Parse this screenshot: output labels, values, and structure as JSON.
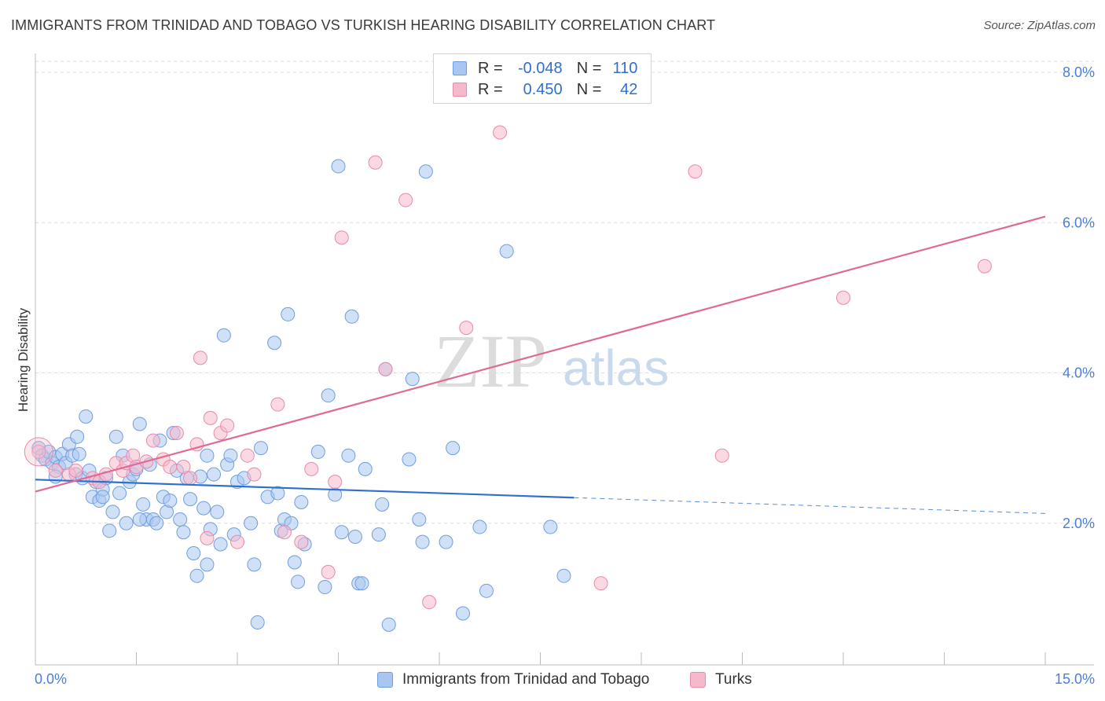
{
  "title": "IMMIGRANTS FROM TRINIDAD AND TOBAGO VS TURKISH HEARING DISABILITY CORRELATION CHART",
  "source": "Source: ZipAtlas.com",
  "watermark": {
    "zip": "ZIP",
    "atlas": "atlas"
  },
  "legend": {
    "rows": [
      {
        "r_label": "R =",
        "r_value": "-0.048",
        "n_label": "N =",
        "n_value": "110",
        "color": "#a9c6f0",
        "border": "#6f9ee0"
      },
      {
        "r_label": "R =",
        "r_value": "0.450",
        "n_label": "N =",
        "n_value": "42",
        "color": "#f6b9cc",
        "border": "#e88aa8"
      }
    ]
  },
  "bottom_legend": [
    {
      "label": "Immigrants from Trinidad and Tobago",
      "color": "#a9c6f0",
      "border": "#6f9ee0"
    },
    {
      "label": "Turks",
      "color": "#f6b9cc",
      "border": "#e88aa8"
    }
  ],
  "colors": {
    "blue": "#2f6fd0",
    "blue_fill": "#a9c6f0",
    "pink": "#e06a93",
    "pink_fill": "#f6b9cc",
    "grid": "#dcdcdc",
    "axis_text": "#4a7fd4"
  },
  "chart_data": {
    "type": "scatter",
    "title": "IMMIGRANTS FROM TRINIDAD AND TOBAGO VS TURKISH HEARING DISABILITY CORRELATION CHART",
    "xlabel": "",
    "ylabel": "Hearing Disability",
    "xlim": [
      0,
      15
    ],
    "ylim": [
      0,
      8
    ],
    "x_tick_labels": [
      "0.0%",
      "15.0%"
    ],
    "y_ticks": [
      2,
      4,
      6,
      8
    ],
    "y_tick_labels": [
      "2.0%",
      "4.0%",
      "6.0%",
      "8.0%"
    ],
    "grid": "horizontal dashed",
    "legend_position": "top-center",
    "series": [
      {
        "name": "Immigrants from Trinidad and Tobago",
        "color": "#2f6fd0",
        "trend": {
          "x": [
            0,
            8
          ],
          "y": [
            2.58,
            2.34
          ],
          "dashed_to": [
            15,
            2.13
          ]
        },
        "points": [
          [
            0.05,
            3.0
          ],
          [
            0.1,
            2.9
          ],
          [
            0.15,
            2.85
          ],
          [
            0.2,
            2.95
          ],
          [
            0.25,
            2.8
          ],
          [
            0.3,
            2.88
          ],
          [
            0.35,
            2.75
          ],
          [
            0.4,
            2.92
          ],
          [
            0.45,
            2.8
          ],
          [
            0.5,
            3.05
          ],
          [
            0.55,
            2.9
          ],
          [
            0.6,
            2.65
          ],
          [
            0.62,
            3.15
          ],
          [
            0.7,
            2.6
          ],
          [
            0.75,
            3.42
          ],
          [
            0.8,
            2.7
          ],
          [
            0.85,
            2.35
          ],
          [
            0.9,
            2.55
          ],
          [
            0.95,
            2.3
          ],
          [
            1.0,
            2.45
          ],
          [
            1.05,
            2.6
          ],
          [
            1.1,
            1.9
          ],
          [
            1.15,
            2.15
          ],
          [
            1.2,
            3.15
          ],
          [
            1.25,
            2.4
          ],
          [
            1.3,
            2.9
          ],
          [
            1.35,
            2.0
          ],
          [
            1.4,
            2.55
          ],
          [
            1.45,
            2.65
          ],
          [
            1.5,
            2.72
          ],
          [
            1.55,
            3.32
          ],
          [
            1.6,
            2.25
          ],
          [
            1.65,
            2.05
          ],
          [
            1.7,
            2.78
          ],
          [
            1.75,
            2.05
          ],
          [
            1.8,
            2.0
          ],
          [
            1.85,
            3.1
          ],
          [
            1.9,
            2.35
          ],
          [
            1.95,
            2.15
          ],
          [
            2.0,
            2.3
          ],
          [
            2.05,
            3.2
          ],
          [
            2.1,
            2.7
          ],
          [
            2.15,
            2.05
          ],
          [
            2.2,
            1.88
          ],
          [
            2.25,
            2.6
          ],
          [
            2.3,
            2.32
          ],
          [
            2.35,
            1.6
          ],
          [
            2.4,
            1.3
          ],
          [
            2.45,
            2.62
          ],
          [
            2.5,
            2.2
          ],
          [
            2.55,
            1.45
          ],
          [
            2.6,
            1.92
          ],
          [
            2.65,
            2.65
          ],
          [
            2.7,
            2.15
          ],
          [
            2.75,
            1.72
          ],
          [
            2.8,
            4.5
          ],
          [
            2.85,
            2.78
          ],
          [
            2.9,
            2.9
          ],
          [
            2.95,
            1.85
          ],
          [
            3.0,
            2.55
          ],
          [
            3.1,
            2.6
          ],
          [
            3.2,
            2.0
          ],
          [
            3.25,
            1.45
          ],
          [
            3.3,
            0.68
          ],
          [
            3.35,
            3.0
          ],
          [
            3.45,
            2.35
          ],
          [
            3.55,
            4.4
          ],
          [
            3.6,
            2.4
          ],
          [
            3.65,
            1.9
          ],
          [
            3.7,
            2.05
          ],
          [
            3.75,
            4.78
          ],
          [
            3.8,
            2.0
          ],
          [
            3.85,
            1.48
          ],
          [
            3.9,
            1.22
          ],
          [
            3.95,
            2.28
          ],
          [
            4.0,
            1.72
          ],
          [
            4.2,
            2.95
          ],
          [
            4.3,
            1.15
          ],
          [
            4.35,
            3.7
          ],
          [
            4.45,
            2.38
          ],
          [
            4.5,
            6.75
          ],
          [
            4.55,
            1.88
          ],
          [
            4.65,
            2.9
          ],
          [
            4.7,
            4.75
          ],
          [
            4.75,
            1.82
          ],
          [
            4.8,
            1.2
          ],
          [
            4.85,
            1.2
          ],
          [
            4.9,
            2.72
          ],
          [
            5.1,
            1.85
          ],
          [
            5.15,
            2.25
          ],
          [
            5.2,
            4.05
          ],
          [
            5.25,
            0.65
          ],
          [
            5.55,
            2.85
          ],
          [
            5.6,
            3.92
          ],
          [
            5.7,
            2.05
          ],
          [
            5.75,
            1.75
          ],
          [
            5.8,
            6.68
          ],
          [
            6.1,
            1.75
          ],
          [
            6.2,
            3.0
          ],
          [
            6.35,
            0.8
          ],
          [
            6.6,
            1.95
          ],
          [
            6.7,
            1.1
          ],
          [
            7.0,
            5.62
          ],
          [
            7.65,
            1.95
          ],
          [
            7.85,
            1.3
          ],
          [
            0.3,
            2.62
          ],
          [
            0.65,
            2.92
          ],
          [
            1.0,
            2.35
          ],
          [
            1.55,
            2.05
          ],
          [
            2.55,
            2.9
          ]
        ]
      },
      {
        "name": "Turks",
        "color": "#e06a93",
        "trend": {
          "x": [
            0,
            15
          ],
          "y": [
            2.42,
            6.08
          ]
        },
        "points": [
          [
            0.05,
            2.95
          ],
          [
            0.3,
            2.7
          ],
          [
            0.5,
            2.65
          ],
          [
            0.6,
            2.7
          ],
          [
            0.85,
            2.6
          ],
          [
            0.95,
            2.55
          ],
          [
            1.05,
            2.65
          ],
          [
            1.2,
            2.8
          ],
          [
            1.3,
            2.7
          ],
          [
            1.35,
            2.8
          ],
          [
            1.45,
            2.9
          ],
          [
            1.5,
            2.75
          ],
          [
            1.65,
            2.82
          ],
          [
            1.75,
            3.1
          ],
          [
            1.9,
            2.85
          ],
          [
            2.0,
            2.75
          ],
          [
            2.1,
            3.2
          ],
          [
            2.2,
            2.75
          ],
          [
            2.3,
            2.6
          ],
          [
            2.4,
            3.05
          ],
          [
            2.45,
            4.2
          ],
          [
            2.55,
            1.8
          ],
          [
            2.6,
            3.4
          ],
          [
            2.75,
            3.2
          ],
          [
            2.85,
            3.3
          ],
          [
            3.0,
            1.75
          ],
          [
            3.15,
            2.9
          ],
          [
            3.25,
            2.65
          ],
          [
            3.6,
            3.58
          ],
          [
            3.7,
            1.88
          ],
          [
            3.95,
            1.75
          ],
          [
            4.1,
            2.72
          ],
          [
            4.35,
            1.35
          ],
          [
            4.45,
            2.55
          ],
          [
            4.55,
            5.8
          ],
          [
            5.05,
            6.8
          ],
          [
            5.2,
            4.05
          ],
          [
            5.5,
            6.3
          ],
          [
            5.85,
            0.95
          ],
          [
            6.4,
            4.6
          ],
          [
            6.9,
            7.2
          ],
          [
            8.4,
            1.2
          ]
        ]
      }
    ],
    "extra_points": {
      "Immigrants from Trinidad and Tobago": [],
      "Turks": [
        [
          9.8,
          6.68
        ],
        [
          10.2,
          2.9
        ],
        [
          12.0,
          5.0
        ],
        [
          14.1,
          5.42
        ]
      ]
    }
  }
}
